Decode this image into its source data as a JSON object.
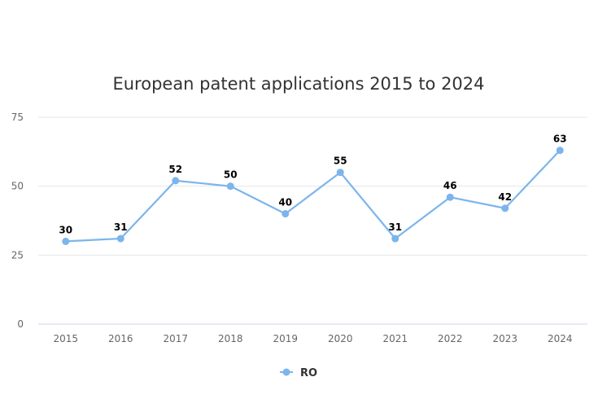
{
  "chart_data": {
    "type": "line",
    "title": "European patent applications 2015 to 2024",
    "categories": [
      "2015",
      "2016",
      "2017",
      "2018",
      "2019",
      "2020",
      "2021",
      "2022",
      "2023",
      "2024"
    ],
    "series": [
      {
        "name": "RO",
        "color": "#7cb5ec",
        "values": [
          30,
          31,
          52,
          50,
          40,
          55,
          31,
          46,
          42,
          63
        ]
      }
    ],
    "yticks": [
      0,
      25,
      50,
      75
    ],
    "ylim": [
      0,
      75
    ],
    "grid": true,
    "legend_position": "bottom-center",
    "data_labels": true
  }
}
